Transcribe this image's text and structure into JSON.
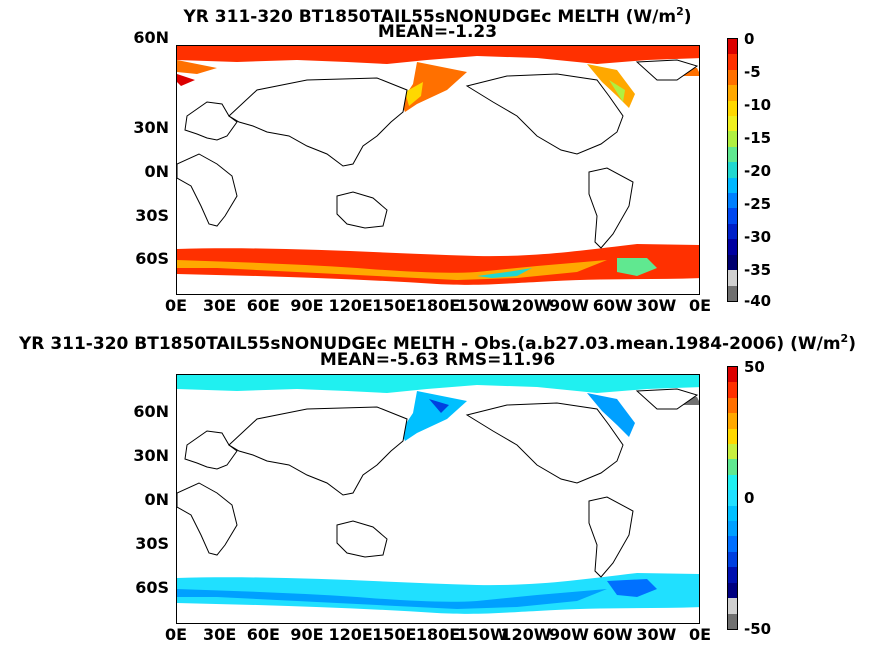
{
  "chart_data": [
    {
      "type": "heatmap",
      "title": "YR 311-320 BT1850TAIL55sNONUDGEc  MELTH (W/m",
      "title_sup": "2",
      "title_end": ")",
      "subtitle": "MEAN=-1.23",
      "lat_ticks": [
        "60N",
        "30N",
        "0N",
        "30S",
        "60S"
      ],
      "lon_ticks": [
        "0E",
        "30E",
        "60E",
        "90E",
        "120E",
        "150E",
        "180E",
        "150W",
        "120W",
        "90W",
        "60W",
        "30W",
        "0E"
      ],
      "colorbar": {
        "min": -40,
        "max": 0,
        "ticks": [
          "0",
          "-5",
          "-10",
          "-15",
          "-20",
          "-25",
          "-30",
          "-35",
          "-40"
        ]
      }
    },
    {
      "type": "heatmap",
      "title": "YR 311-320 BT1850TAIL55sNONUDGEc MELTH - Obs.(a.b27.03.mean.1984-2006) (W/m",
      "title_sup": "2",
      "title_end": ")",
      "subtitle": "MEAN=-5.63 RMS=11.96",
      "lat_ticks": [
        "60N",
        "30N",
        "0N",
        "30S",
        "60S"
      ],
      "lon_ticks": [
        "0E",
        "30E",
        "60E",
        "90E",
        "120E",
        "150E",
        "180E",
        "150W",
        "120W",
        "90W",
        "60W",
        "30W",
        "0E"
      ],
      "colorbar": {
        "min": -50,
        "max": 50,
        "ticks": [
          "50",
          "0",
          "-50"
        ]
      }
    }
  ],
  "colors": {
    "cb1": [
      "#dc0000",
      "#ff3000",
      "#ff7000",
      "#ffa800",
      "#ffd800",
      "#f0f020",
      "#b0f040",
      "#60e890",
      "#20d8d0",
      "#00b8ff",
      "#0080ff",
      "#0048f0",
      "#0020c8",
      "#0000a0",
      "#000070",
      "#d0d0d0",
      "#707070"
    ],
    "cb2": [
      "#dc0000",
      "#ff3000",
      "#ff7000",
      "#ffa800",
      "#ffd800",
      "#c8f040",
      "#60e890",
      "#20f0f0",
      "#20e0ff",
      "#00c0ff",
      "#00a0ff",
      "#0070ff",
      "#0040e0",
      "#0010b0",
      "#000080",
      "#d0d0d0",
      "#707070"
    ],
    "land": "#ffffff"
  }
}
